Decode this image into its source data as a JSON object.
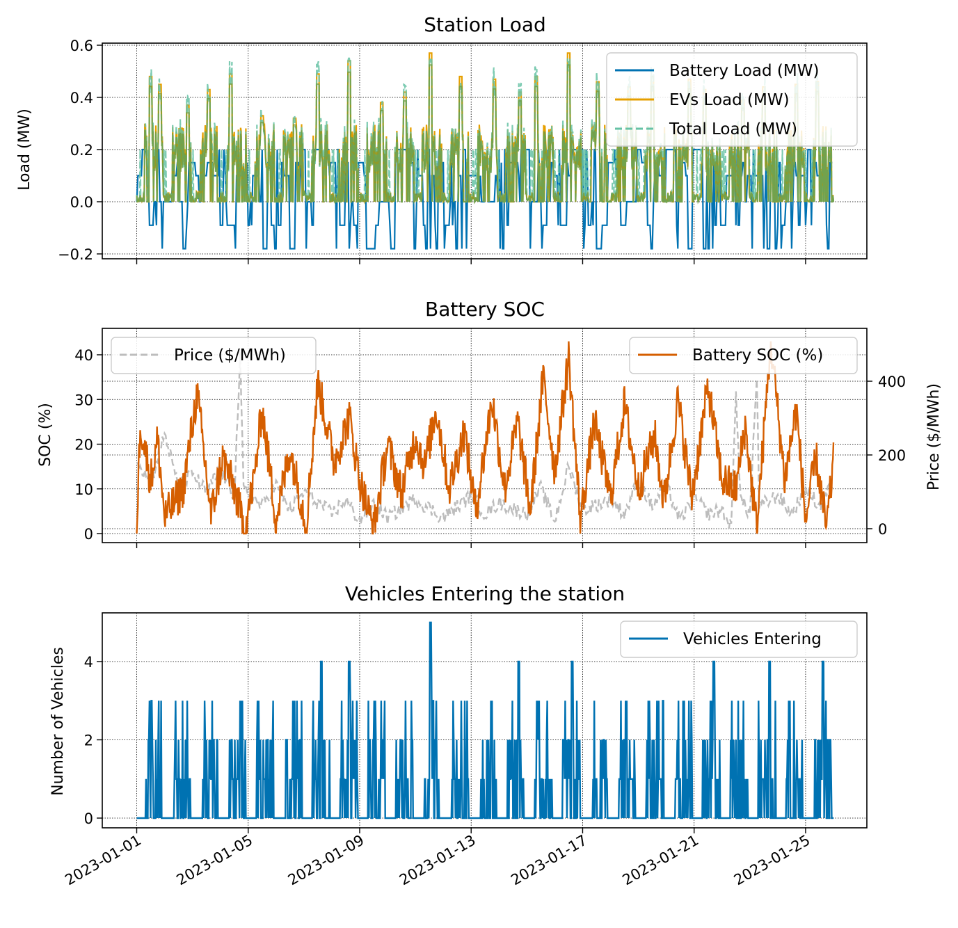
{
  "colors": {
    "battery_load": "#0072b2",
    "evs_load": "#e69f00",
    "total_load": "#66c2a5",
    "battery_soc": "#d55e00",
    "price": "#bdbdbd",
    "vehicles": "#0072b2",
    "price_axis_text": "#808080"
  },
  "x_date_labels": [
    "2023-01-01",
    "2023-01-05",
    "2023-01-09",
    "2023-01-13",
    "2023-01-17",
    "2023-01-21",
    "2023-01-25"
  ],
  "chart_data": [
    {
      "type": "line",
      "title": "Station Load",
      "ylabel": "Load (MW)",
      "xlabel": "",
      "x_range": [
        "2023-01-01",
        "2023-01-26"
      ],
      "ylim": [
        -0.2,
        0.6
      ],
      "yticks": [
        "−0.2",
        "0.0",
        "0.2",
        "0.4",
        "0.6"
      ],
      "grid": true,
      "legend_position": "top-right",
      "series": [
        {
          "name": "Battery Load (MW)",
          "levels": [
            -0.18,
            -0.09,
            0,
            0.1,
            0.15,
            0.2
          ]
        },
        {
          "name": "EVs Load (MW)",
          "peaks": [
            {
              "x": "2023-01-01 12:00",
              "y": 0.48
            },
            {
              "x": "2023-01-01 20:00",
              "y": 0.45
            },
            {
              "x": "2023-01-02 20:00",
              "y": 0.37
            },
            {
              "x": "2023-01-03 14:00",
              "y": 0.43
            },
            {
              "x": "2023-01-04 09:00",
              "y": 0.49
            },
            {
              "x": "2023-01-05 12:00",
              "y": 0.33
            },
            {
              "x": "2023-01-06 16:00",
              "y": 0.32
            },
            {
              "x": "2023-01-07 12:00",
              "y": 0.49
            },
            {
              "x": "2023-01-08 15:00",
              "y": 0.54
            },
            {
              "x": "2023-01-09 19:00",
              "y": 0.38
            },
            {
              "x": "2023-01-10 15:00",
              "y": 0.42
            },
            {
              "x": "2023-01-11 13:00",
              "y": 0.57
            },
            {
              "x": "2023-01-12 15:00",
              "y": 0.48
            },
            {
              "x": "2023-01-13 20:00",
              "y": 0.47
            },
            {
              "x": "2023-01-14 18:00",
              "y": 0.42
            },
            {
              "x": "2023-01-15 08:00",
              "y": 0.48
            },
            {
              "x": "2023-01-16 12:00",
              "y": 0.57
            },
            {
              "x": "2023-01-17 13:00",
              "y": 0.46
            },
            {
              "x": "2023-01-18 16:00",
              "y": 0.44
            },
            {
              "x": "2023-01-19 12:00",
              "y": 0.48
            },
            {
              "x": "2023-01-20 20:00",
              "y": 0.47
            },
            {
              "x": "2023-01-21 09:00",
              "y": 0.43
            },
            {
              "x": "2023-01-22 18:00",
              "y": 0.39
            },
            {
              "x": "2023-01-23 12:00",
              "y": 0.44
            },
            {
              "x": "2023-01-24 16:00",
              "y": 0.45
            },
            {
              "x": "2023-01-25 10:00",
              "y": 0.46
            }
          ]
        },
        {
          "name": "Total Load (MW)",
          "peaks": [
            {
              "x": "2023-01-01 02:00",
              "y": 0.3
            },
            {
              "x": "2023-01-01 12:00",
              "y": 0.48
            },
            {
              "x": "2023-01-04 09:00",
              "y": 0.48
            },
            {
              "x": "2023-01-08 15:00",
              "y": 0.54
            },
            {
              "x": "2023-01-11 13:00",
              "y": 0.53
            },
            {
              "x": "2023-01-16 12:00",
              "y": 0.5
            }
          ]
        }
      ]
    },
    {
      "type": "line",
      "title": "Battery SOC",
      "ylabel": "SOC (%)",
      "y2label": "Price ($/MWh)",
      "x_range": [
        "2023-01-01",
        "2023-01-26"
      ],
      "ylim": [
        0,
        40
      ],
      "yticks": [
        "0",
        "10",
        "20",
        "30",
        "40"
      ],
      "y2lim": [
        0,
        400
      ],
      "y2ticks": [
        "0",
        "200",
        "400"
      ],
      "grid": true,
      "legend_position": "top-left and top-right",
      "series": [
        {
          "name": "Battery SOC (%)",
          "axis": "left",
          "points": [
            [
              "2023-01-01 00:00",
              0
            ],
            [
              "2023-01-01 03:00",
              25
            ],
            [
              "2023-01-01 12:00",
              12
            ],
            [
              "2023-01-01 18:00",
              21
            ],
            [
              "2023-01-02 00:00",
              3.5
            ],
            [
              "2023-01-02 16:00",
              10
            ],
            [
              "2023-01-03 04:00",
              31.5
            ],
            [
              "2023-01-03 16:00",
              4
            ],
            [
              "2023-01-04 02:00",
              17
            ],
            [
              "2023-01-04 12:00",
              10
            ],
            [
              "2023-01-04 21:00",
              1
            ],
            [
              "2023-01-05 05:00",
              12
            ],
            [
              "2023-01-05 12:00",
              28
            ],
            [
              "2023-01-06 00:00",
              3
            ],
            [
              "2023-01-06 12:00",
              19
            ],
            [
              "2023-01-07 02:00",
              2
            ],
            [
              "2023-01-07 12:00",
              34
            ],
            [
              "2023-01-08 02:00",
              16
            ],
            [
              "2023-01-08 15:00",
              26
            ],
            [
              "2023-01-09 00:00",
              12
            ],
            [
              "2023-01-09 12:00",
              1
            ],
            [
              "2023-01-10 00:00",
              20
            ],
            [
              "2023-01-10 12:00",
              9
            ],
            [
              "2023-01-11 00:00",
              22
            ],
            [
              "2023-01-11 08:00",
              15
            ],
            [
              "2023-01-11 18:00",
              28
            ],
            [
              "2023-01-12 05:00",
              10
            ],
            [
              "2023-01-12 18:00",
              23
            ],
            [
              "2023-01-13 04:00",
              5
            ],
            [
              "2023-01-13 18:00",
              30
            ],
            [
              "2023-01-14 05:00",
              10
            ],
            [
              "2023-01-14 16:00",
              25
            ],
            [
              "2023-01-15 03:00",
              5
            ],
            [
              "2023-01-15 14:00",
              35
            ],
            [
              "2023-01-16 00:00",
              14
            ],
            [
              "2023-01-16 12:00",
              39.5
            ],
            [
              "2023-01-16 22:00",
              3
            ],
            [
              "2023-01-17 10:00",
              25
            ],
            [
              "2023-01-18 00:00",
              8
            ],
            [
              "2023-01-18 12:00",
              29
            ],
            [
              "2023-01-19 00:00",
              10
            ],
            [
              "2023-01-19 14:00",
              22
            ],
            [
              "2023-01-19 22:00",
              7
            ],
            [
              "2023-01-20 10:00",
              30
            ],
            [
              "2023-01-20 22:00",
              8
            ],
            [
              "2023-01-21 12:00",
              33
            ],
            [
              "2023-01-22 00:00",
              12
            ],
            [
              "2023-01-22 12:00",
              10
            ],
            [
              "2023-01-22 20:00",
              24
            ],
            [
              "2023-01-23 06:00",
              1
            ],
            [
              "2023-01-23 18:00",
              43
            ],
            [
              "2023-01-24 06:00",
              12
            ],
            [
              "2023-01-24 16:00",
              28
            ],
            [
              "2023-01-25 00:00",
              3
            ],
            [
              "2023-01-25 09:00",
              17
            ],
            [
              "2023-01-25 18:00",
              1
            ],
            [
              "2023-01-26 00:00",
              16
            ]
          ]
        },
        {
          "name": "Price ($/MWh)",
          "axis": "right",
          "style": "dashed",
          "points": [
            [
              "2023-01-01 00:00",
              190
            ],
            [
              "2023-01-01 12:00",
              120
            ],
            [
              "2023-01-02 00:00",
              260
            ],
            [
              "2023-01-02 12:00",
              110
            ],
            [
              "2023-01-03 00:00",
              150
            ],
            [
              "2023-01-03 12:00",
              100
            ],
            [
              "2023-01-04 00:00",
              160
            ],
            [
              "2023-01-04 12:00",
              90
            ],
            [
              "2023-01-04 17:00",
              460
            ],
            [
              "2023-01-04 20:00",
              110
            ],
            [
              "2023-01-05 12:00",
              60
            ],
            [
              "2023-01-06 00:00",
              120
            ],
            [
              "2023-01-06 12:00",
              50
            ],
            [
              "2023-01-07 00:00",
              100
            ],
            [
              "2023-01-08 00:00",
              40
            ],
            [
              "2023-01-08 12:00",
              80
            ],
            [
              "2023-01-09 00:00",
              20
            ],
            [
              "2023-01-09 12:00",
              70
            ],
            [
              "2023-01-10 00:00",
              30
            ],
            [
              "2023-01-11 00:00",
              80
            ],
            [
              "2023-01-12 00:00",
              30
            ],
            [
              "2023-01-13 00:00",
              90
            ],
            [
              "2023-01-13 12:00",
              40
            ],
            [
              "2023-01-14 00:00",
              70
            ],
            [
              "2023-01-15 00:00",
              40
            ],
            [
              "2023-01-15 12:00",
              110
            ],
            [
              "2023-01-16 00:00",
              20
            ],
            [
              "2023-01-16 12:00",
              170
            ],
            [
              "2023-01-17 00:00",
              50
            ],
            [
              "2023-01-18 00:00",
              80
            ],
            [
              "2023-01-18 12:00",
              40
            ],
            [
              "2023-01-19 00:00",
              130
            ],
            [
              "2023-01-19 12:00",
              60
            ],
            [
              "2023-01-20 00:00",
              120
            ],
            [
              "2023-01-20 12:00",
              20
            ],
            [
              "2023-01-21 00:00",
              90
            ],
            [
              "2023-01-21 12:00",
              40
            ],
            [
              "2023-01-22 00:00",
              50
            ],
            [
              "2023-01-22 08:00",
              0
            ],
            [
              "2023-01-22 12:00",
              380
            ],
            [
              "2023-01-22 16:00",
              80
            ],
            [
              "2023-01-23 00:00",
              40
            ],
            [
              "2023-01-23 06:00",
              420
            ],
            [
              "2023-01-23 08:00",
              60
            ],
            [
              "2023-01-24 00:00",
              90
            ],
            [
              "2023-01-24 12:00",
              40
            ],
            [
              "2023-01-25 00:00",
              110
            ],
            [
              "2023-01-25 12:00",
              60
            ],
            [
              "2023-01-26 00:00",
              130
            ]
          ]
        }
      ]
    },
    {
      "type": "line",
      "title": "Vehicles Entering the station",
      "ylabel": "Number of Vehicles",
      "x_range": [
        "2023-01-01",
        "2023-01-26"
      ],
      "ylim": [
        0,
        5
      ],
      "yticks": [
        "0",
        "2",
        "4"
      ],
      "grid": true,
      "legend_position": "top-right",
      "series": [
        {
          "name": "Vehicles Entering",
          "levels": [
            0,
            1,
            2,
            3
          ],
          "peaks": [
            {
              "x": "2023-01-07 15:00",
              "y": 4
            },
            {
              "x": "2023-01-08 15:00",
              "y": 4
            },
            {
              "x": "2023-01-11 13:00",
              "y": 5
            },
            {
              "x": "2023-01-14 17:00",
              "y": 4
            },
            {
              "x": "2023-01-16 15:00",
              "y": 4
            },
            {
              "x": "2023-01-21 17:00",
              "y": 4
            },
            {
              "x": "2023-01-23 17:00",
              "y": 4
            },
            {
              "x": "2023-01-25 15:00",
              "y": 4
            }
          ]
        }
      ]
    }
  ]
}
